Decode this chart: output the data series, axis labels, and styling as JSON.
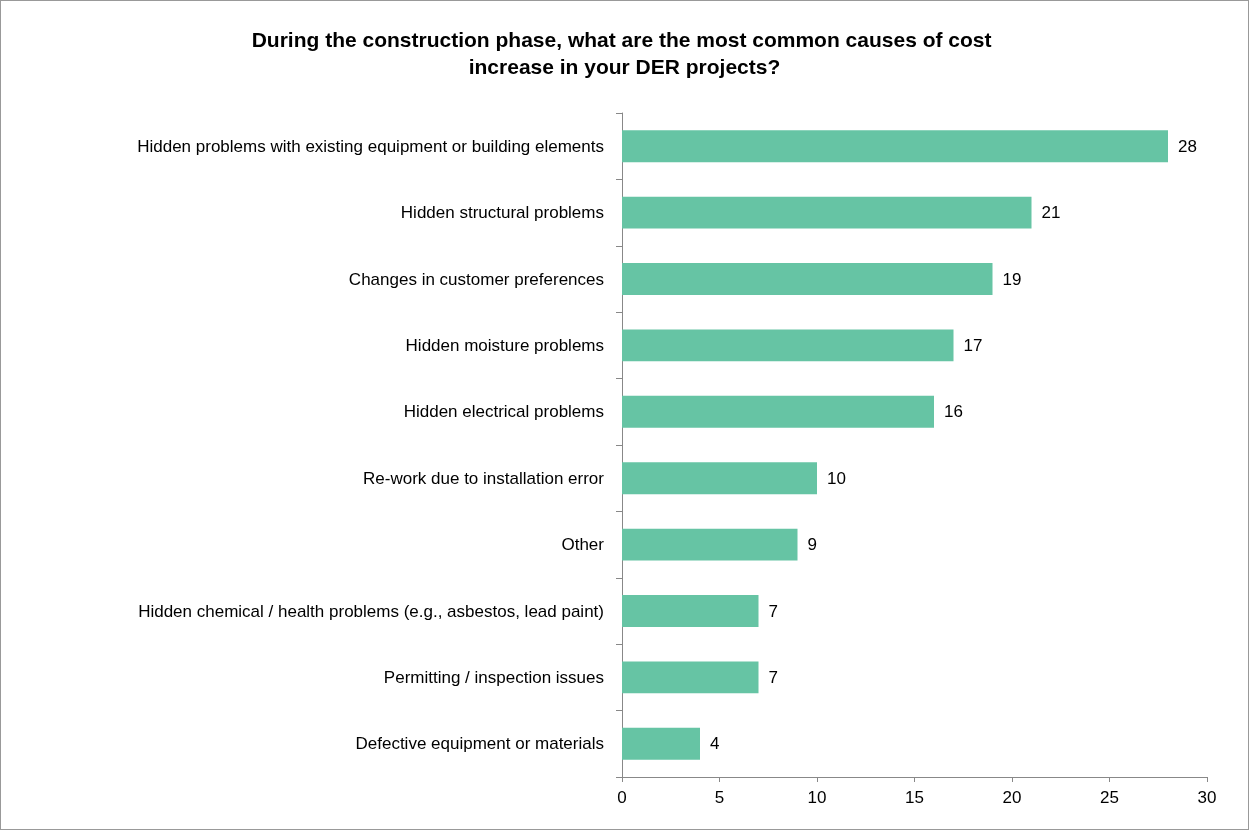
{
  "chart_data": {
    "type": "bar",
    "orientation": "horizontal",
    "title": "During the construction phase, what are the most common causes of cost increase in your DER projects?",
    "categories": [
      "Hidden problems with existing equipment or building elements",
      "Hidden structural problems",
      "Changes in customer preferences",
      "Hidden moisture problems",
      "Hidden electrical problems",
      "Re-work due to installation error",
      "Other",
      "Hidden chemical / health problems (e.g., asbestos, lead paint)",
      "Permitting / inspection issues",
      "Defective equipment or materials"
    ],
    "values": [
      28,
      21,
      19,
      17,
      16,
      10,
      9,
      7,
      7,
      4
    ],
    "color": "#66c4a4",
    "xlim": [
      0,
      30
    ],
    "xticks": [
      0,
      5,
      10,
      15,
      20,
      25,
      30
    ],
    "data_labels": true
  }
}
